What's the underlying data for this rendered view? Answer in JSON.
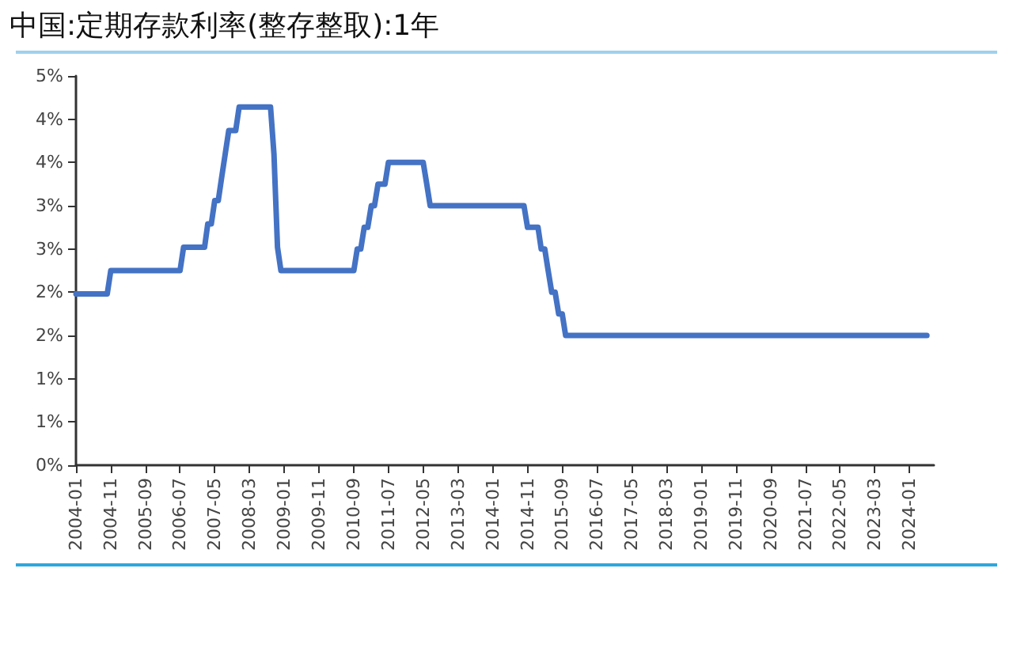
{
  "chart_data": {
    "type": "line",
    "title": "中国:定期存款利率(整存整取):1年",
    "x": [
      "2004-01",
      "2004-10",
      "2004-11",
      "2006-07",
      "2006-08",
      "2007-02",
      "2007-03",
      "2007-04",
      "2007-05",
      "2007-06",
      "2007-07",
      "2007-08",
      "2007-09",
      "2007-11",
      "2007-12",
      "2008-09",
      "2008-10",
      "2008-11",
      "2008-12",
      "2010-09",
      "2010-10",
      "2010-11",
      "2010-12",
      "2011-01",
      "2011-02",
      "2011-03",
      "2011-04",
      "2011-06",
      "2011-07",
      "2012-05",
      "2012-06",
      "2012-07",
      "2014-10",
      "2014-11",
      "2015-02",
      "2015-03",
      "2015-04",
      "2015-05",
      "2015-06",
      "2015-07",
      "2015-08",
      "2015-09",
      "2015-10",
      "2024-06"
    ],
    "series": [
      {
        "color": "#4472c4",
        "values": [
          1.98,
          1.98,
          2.25,
          2.25,
          2.52,
          2.52,
          2.79,
          2.79,
          3.06,
          3.06,
          3.33,
          3.6,
          3.87,
          3.87,
          4.14,
          4.14,
          3.6,
          2.52,
          2.25,
          2.25,
          2.5,
          2.5,
          2.75,
          2.75,
          3.0,
          3.0,
          3.25,
          3.25,
          3.5,
          3.5,
          3.25,
          3.0,
          3.0,
          2.75,
          2.75,
          2.5,
          2.5,
          2.25,
          2.0,
          2.0,
          1.75,
          1.75,
          1.5,
          1.5
        ]
      }
    ],
    "xlim": [
      "2004-01",
      "2024-08"
    ],
    "xticks": [
      "2004-01",
      "2004-11",
      "2005-09",
      "2006-07",
      "2007-05",
      "2008-03",
      "2009-01",
      "2009-11",
      "2010-09",
      "2011-07",
      "2012-05",
      "2013-03",
      "2014-01",
      "2014-11",
      "2015-09",
      "2016-07",
      "2017-05",
      "2018-03",
      "2019-01",
      "2019-11",
      "2020-09",
      "2021-07",
      "2022-05",
      "2023-03",
      "2024-01"
    ],
    "ylim": [
      0,
      4.5
    ],
    "yticks": [
      {
        "value": 0,
        "label": "0%"
      },
      {
        "value": 0.5,
        "label": "1%"
      },
      {
        "value": 1,
        "label": "1%"
      },
      {
        "value": 1.5,
        "label": "2%"
      },
      {
        "value": 2,
        "label": "2%"
      },
      {
        "value": 2.5,
        "label": "3%"
      },
      {
        "value": 3,
        "label": "3%"
      },
      {
        "value": 3.5,
        "label": "4%"
      },
      {
        "value": 4,
        "label": "4%"
      },
      {
        "value": 4.5,
        "label": "5%"
      }
    ],
    "grid": false,
    "marker": "none",
    "line_style": "solid"
  }
}
